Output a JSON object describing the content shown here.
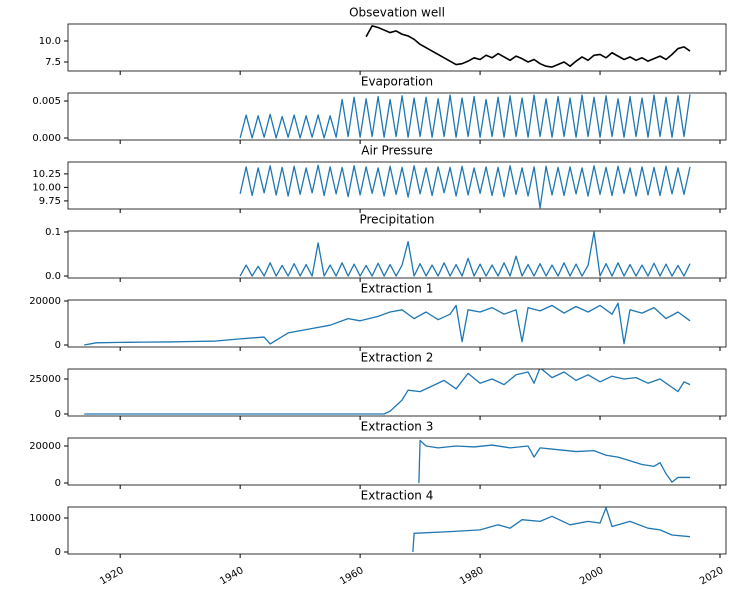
{
  "chart_data": [
    {
      "type": "line",
      "title": "Obsevation well",
      "color": "#000000",
      "x": [
        1961,
        1962,
        1963,
        1964,
        1965,
        1966,
        1967,
        1968,
        1969,
        1970,
        1971,
        1972,
        1973,
        1974,
        1975,
        1976,
        1977,
        1978,
        1979,
        1980,
        1981,
        1982,
        1983,
        1984,
        1985,
        1986,
        1987,
        1988,
        1989,
        1990,
        1991,
        1992,
        1993,
        1994,
        1995,
        1996,
        1997,
        1998,
        1999,
        2000,
        2001,
        2002,
        2003,
        2004,
        2005,
        2006,
        2007,
        2008,
        2009,
        2010,
        2011,
        2012,
        2013,
        2014,
        2015
      ],
      "values": [
        10.5,
        11.8,
        11.6,
        11.3,
        11.0,
        11.2,
        10.8,
        10.6,
        10.2,
        9.6,
        9.2,
        8.8,
        8.4,
        8.0,
        7.6,
        7.2,
        7.3,
        7.6,
        8.0,
        7.8,
        8.3,
        8.0,
        8.5,
        8.1,
        7.7,
        8.2,
        7.9,
        7.5,
        7.8,
        7.3,
        7.0,
        6.9,
        7.2,
        7.5,
        7.0,
        7.6,
        8.1,
        7.7,
        8.3,
        8.4,
        8.0,
        8.6,
        8.2,
        7.8,
        8.1,
        7.7,
        8.0,
        7.6,
        7.9,
        8.2,
        7.8,
        8.4,
        9.1,
        9.3,
        8.8
      ],
      "xlim": [
        1911.3,
        2021
      ],
      "ylim": [
        6.43,
        12.02
      ],
      "yticks": [
        {
          "value": 10,
          "label": "10.0"
        },
        7.5
      ]
    },
    {
      "type": "line",
      "title": "Evaporation",
      "color": "#1f77b4",
      "x": [
        1940,
        1941,
        1942,
        1943,
        1944,
        1945,
        1946,
        1947,
        1948,
        1949,
        1950,
        1951,
        1952,
        1953,
        1954,
        1955,
        1956,
        1957,
        1958,
        1959,
        1960,
        1961,
        1962,
        1963,
        1964,
        1965,
        1966,
        1967,
        1968,
        1969,
        1970,
        1971,
        1972,
        1973,
        1974,
        1975,
        1976,
        1977,
        1978,
        1979,
        1980,
        1981,
        1982,
        1983,
        1984,
        1985,
        1986,
        1987,
        1988,
        1989,
        1990,
        1991,
        1992,
        1993,
        1994,
        1995,
        1996,
        1997,
        1998,
        1999,
        2000,
        2001,
        2002,
        2003,
        2004,
        2005,
        2006,
        2007,
        2008,
        2009,
        2010,
        2011,
        2012,
        2013,
        2014,
        2015
      ],
      "values": [
        0.0,
        0.0031,
        0.0,
        0.003,
        0.0001,
        0.0032,
        0.0,
        0.0029,
        0.0001,
        0.0031,
        0.0,
        0.003,
        0.0001,
        0.0031,
        0.0,
        0.003,
        0.0001,
        0.0052,
        0.0002,
        0.0055,
        0.0001,
        0.0053,
        0.0002,
        0.0056,
        0.0001,
        0.0052,
        0.0002,
        0.0057,
        0.0001,
        0.0054,
        0.0002,
        0.0055,
        0.0001,
        0.0053,
        0.0002,
        0.0058,
        0.0001,
        0.0054,
        0.0002,
        0.0056,
        0.0001,
        0.0052,
        0.0002,
        0.0055,
        0.0001,
        0.0057,
        0.0002,
        0.0054,
        0.0001,
        0.0058,
        0.0002,
        0.0053,
        0.0001,
        0.0056,
        0.0002,
        0.0054,
        0.0001,
        0.0058,
        0.0002,
        0.0055,
        0.0001,
        0.0057,
        0.0002,
        0.0053,
        0.0001,
        0.0056,
        0.0002,
        0.0054,
        0.0001,
        0.0058,
        0.0002,
        0.0055,
        0.0001,
        0.0057,
        0.0002,
        0.0059
      ],
      "xlim": [
        1911.3,
        2021
      ],
      "ylim": [
        -0.00027,
        0.00608
      ],
      "yticks": [
        {
          "value": 0.005,
          "label": "0.005"
        },
        {
          "value": 0,
          "label": "0.000"
        }
      ]
    },
    {
      "type": "line",
      "title": "Air Pressure",
      "color": "#1f77b4",
      "x": [
        1940,
        1941,
        1942,
        1943,
        1944,
        1945,
        1946,
        1947,
        1948,
        1949,
        1950,
        1951,
        1952,
        1953,
        1954,
        1955,
        1956,
        1957,
        1958,
        1959,
        1960,
        1961,
        1962,
        1963,
        1964,
        1965,
        1966,
        1967,
        1968,
        1969,
        1970,
        1971,
        1972,
        1973,
        1974,
        1975,
        1976,
        1977,
        1978,
        1979,
        1980,
        1981,
        1982,
        1983,
        1984,
        1985,
        1986,
        1987,
        1988,
        1989,
        1990,
        1991,
        1992,
        1993,
        1994,
        1995,
        1996,
        1997,
        1998,
        1999,
        2000,
        2001,
        2002,
        2003,
        2004,
        2005,
        2006,
        2007,
        2008,
        2009,
        2010,
        2011,
        2012,
        2013,
        2014,
        2015
      ],
      "values": [
        9.88,
        10.38,
        9.85,
        10.36,
        9.9,
        10.4,
        9.86,
        10.37,
        9.84,
        10.39,
        9.87,
        10.36,
        9.9,
        10.41,
        9.85,
        10.38,
        9.88,
        10.37,
        9.83,
        10.4,
        9.86,
        10.38,
        9.89,
        10.36,
        9.84,
        10.39,
        9.87,
        10.37,
        9.82,
        10.4,
        9.88,
        10.36,
        9.85,
        10.38,
        9.9,
        10.37,
        9.84,
        10.39,
        9.86,
        10.36,
        9.89,
        10.38,
        9.85,
        10.37,
        9.83,
        10.4,
        9.87,
        10.36,
        9.84,
        10.38,
        9.62,
        10.39,
        9.86,
        10.37,
        9.85,
        10.38,
        9.88,
        10.36,
        9.84,
        10.4,
        9.87,
        10.37,
        9.85,
        10.39,
        9.89,
        10.36,
        9.84,
        10.38,
        9.86,
        10.37,
        9.85,
        10.39,
        9.88,
        10.36,
        9.87,
        10.38
      ],
      "xlim": [
        1911.3,
        2021
      ],
      "ylim": [
        9.6,
        10.47
      ],
      "yticks": [
        10.25,
        {
          "value": 10,
          "label": "10.00"
        },
        9.75
      ]
    },
    {
      "type": "line",
      "title": "Precipitation",
      "color": "#1f77b4",
      "x": [
        1940,
        1941,
        1942,
        1943,
        1944,
        1945,
        1946,
        1947,
        1948,
        1949,
        1950,
        1951,
        1952,
        1953,
        1954,
        1955,
        1956,
        1957,
        1958,
        1959,
        1960,
        1961,
        1962,
        1963,
        1964,
        1965,
        1966,
        1967,
        1968,
        1969,
        1970,
        1971,
        1972,
        1973,
        1974,
        1975,
        1976,
        1977,
        1978,
        1979,
        1980,
        1981,
        1982,
        1983,
        1984,
        1985,
        1986,
        1987,
        1988,
        1989,
        1990,
        1991,
        1992,
        1993,
        1994,
        1995,
        1996,
        1997,
        1998,
        1999,
        2000,
        2001,
        2002,
        2003,
        2004,
        2005,
        2006,
        2007,
        2008,
        2009,
        2010,
        2011,
        2012,
        2013,
        2014,
        2015
      ],
      "values": [
        0.0,
        0.025,
        0.0,
        0.022,
        0.0,
        0.03,
        0.0,
        0.024,
        0.0,
        0.028,
        0.0,
        0.026,
        0.0,
        0.075,
        0.0,
        0.025,
        0.0,
        0.03,
        0.0,
        0.027,
        0.0,
        0.024,
        0.0,
        0.029,
        0.0,
        0.026,
        0.0,
        0.025,
        0.078,
        0.0,
        0.028,
        0.0,
        0.025,
        0.0,
        0.03,
        0.0,
        0.026,
        0.0,
        0.04,
        0.0,
        0.027,
        0.0,
        0.025,
        0.0,
        0.03,
        0.0,
        0.045,
        0.0,
        0.026,
        0.0,
        0.028,
        0.0,
        0.025,
        0.0,
        0.03,
        0.0,
        0.027,
        0.0,
        0.024,
        0.1,
        0.0,
        0.028,
        0.0,
        0.03,
        0.0,
        0.026,
        0.0,
        0.025,
        0.0,
        0.029,
        0.0,
        0.027,
        0.0,
        0.024,
        0.0,
        0.028
      ],
      "xlim": [
        1911.3,
        2021
      ],
      "ylim": [
        -0.0045,
        0.1023
      ],
      "yticks": [
        0.1,
        {
          "value": 0,
          "label": "0.0"
        }
      ]
    },
    {
      "type": "line",
      "title": "Extraction 1",
      "color": "#1f77b4",
      "x": [
        1914,
        1916,
        1920,
        1924,
        1928,
        1932,
        1936,
        1940,
        1942,
        1944,
        1945,
        1948,
        1952,
        1955,
        1958,
        1960,
        1963,
        1965,
        1967,
        1969,
        1971,
        1973,
        1975,
        1976,
        1977,
        1978,
        1980,
        1982,
        1984,
        1986,
        1987,
        1988,
        1990,
        1992,
        1994,
        1996,
        1998,
        2000,
        2002,
        2003,
        2004,
        2005,
        2007,
        2009,
        2011,
        2013,
        2015
      ],
      "values": [
        0,
        1000,
        1200,
        1300,
        1400,
        1600,
        1800,
        2800,
        3200,
        3600,
        500,
        5500,
        7500,
        9000,
        12000,
        11000,
        13000,
        15000,
        16000,
        12000,
        15000,
        11500,
        14000,
        18000,
        1500,
        16000,
        15000,
        17000,
        14000,
        16000,
        1500,
        17000,
        15500,
        18000,
        14500,
        17500,
        15000,
        18000,
        14000,
        19000,
        600,
        16000,
        14500,
        17000,
        12000,
        15000,
        11000
      ],
      "xlim": [
        1911.3,
        2021
      ],
      "ylim": [
        -909,
        20455
      ],
      "yticks": [
        20000,
        0
      ]
    },
    {
      "type": "line",
      "title": "Extraction 2",
      "color": "#1f77b4",
      "x": [
        1914,
        1964,
        1965,
        1966,
        1967,
        1968,
        1970,
        1972,
        1974,
        1976,
        1978,
        1980,
        1982,
        1984,
        1986,
        1988,
        1989,
        1990,
        1992,
        1994,
        1996,
        1998,
        2000,
        2002,
        2004,
        2006,
        2008,
        2010,
        2012,
        2013,
        2014,
        2015
      ],
      "values": [
        0,
        0,
        2000,
        6000,
        10000,
        17000,
        16000,
        20000,
        24000,
        18000,
        29000,
        22000,
        25000,
        21000,
        28000,
        30000,
        22000,
        33000,
        26000,
        30000,
        24000,
        28000,
        23000,
        27000,
        25000,
        26000,
        22000,
        25000,
        19000,
        16000,
        23000,
        21000
      ],
      "xlim": [
        1911.3,
        2021
      ],
      "ylim": [
        -1429,
        32143
      ],
      "yticks": [
        25000,
        0
      ]
    },
    {
      "type": "line",
      "title": "Extraction 3",
      "color": "#1f77b4",
      "x": [
        1969.8,
        1970,
        1971,
        1973,
        1976,
        1979,
        1982,
        1985,
        1988,
        1989,
        1990,
        1993,
        1996,
        1999,
        2001,
        2003,
        2005,
        2007,
        2009,
        2010,
        2011,
        2012,
        2013,
        2015
      ],
      "values": [
        0,
        23000,
        20000,
        19000,
        20000,
        19500,
        20500,
        19000,
        20000,
        14000,
        19000,
        18000,
        17000,
        17500,
        15000,
        14000,
        12000,
        10000,
        9000,
        11000,
        5000,
        500,
        3000,
        3000
      ],
      "xlim": [
        1911.3,
        2021
      ],
      "ylim": [
        -1081,
        24324
      ],
      "yticks": [
        20000,
        0
      ]
    },
    {
      "type": "line",
      "title": "Extraction 4",
      "color": "#1f77b4",
      "x": [
        1968.8,
        1969,
        1975,
        1980,
        1983,
        1985,
        1987,
        1990,
        1992,
        1995,
        1998,
        2000,
        2001,
        2002,
        2005,
        2008,
        2010,
        2012,
        2015
      ],
      "values": [
        0,
        5500,
        6000,
        6500,
        8000,
        7000,
        9500,
        9000,
        10500,
        8000,
        9000,
        8500,
        13000,
        7500,
        9000,
        7000,
        6500,
        5000,
        4500
      ],
      "xlim": [
        1911.3,
        2021
      ],
      "ylim": [
        -588,
        13235
      ],
      "yticks": [
        10000,
        0
      ],
      "xticks": [
        1920,
        1940,
        1960,
        1980,
        2000,
        2020
      ]
    }
  ]
}
